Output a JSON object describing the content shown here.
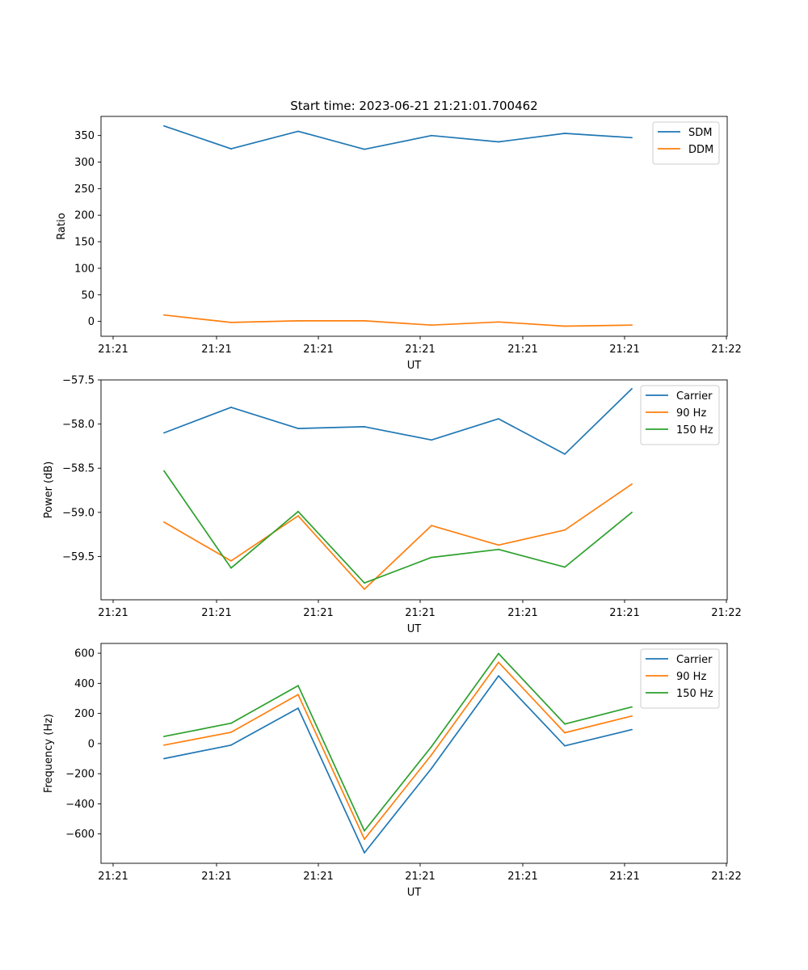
{
  "figure_title": "Start time: 2023-06-21 21:21:01.700462",
  "chart_data": [
    {
      "type": "line",
      "title": "Start time: 2023-06-21 21:21:01.700462",
      "xlabel": "UT",
      "ylabel": "Ratio",
      "x_tick_labels": [
        "21:21",
        "21:21",
        "21:21",
        "21:21",
        "21:21",
        "21:21",
        "21:22"
      ],
      "y_ticks": [
        0,
        50,
        100,
        150,
        200,
        250,
        300,
        350
      ],
      "ylim": [
        -28,
        386
      ],
      "legend_position": "top-right",
      "grid": false,
      "series": [
        {
          "name": "SDM",
          "color": "#1f77b4",
          "values": [
            368,
            325,
            358,
            324,
            350,
            338,
            354,
            346
          ]
        },
        {
          "name": "DDM",
          "color": "#ff7f0e",
          "values": [
            12,
            -2,
            1,
            1,
            -7,
            -1,
            -9,
            -7
          ]
        }
      ]
    },
    {
      "type": "line",
      "title": "",
      "xlabel": "UT",
      "ylabel": "Power (dB)",
      "x_tick_labels": [
        "21:21",
        "21:21",
        "21:21",
        "21:21",
        "21:21",
        "21:21",
        "21:22"
      ],
      "y_ticks": [
        -59.5,
        -59.0,
        -58.5,
        -58.0,
        -57.5
      ],
      "y_tick_labels": [
        "−59.5",
        "−59.0",
        "−58.5",
        "−58.0",
        "−57.5"
      ],
      "ylim": [
        -59.99,
        -57.5
      ],
      "legend_position": "top-right",
      "grid": false,
      "series": [
        {
          "name": "Carrier",
          "color": "#1f77b4",
          "values": [
            -58.1,
            -57.81,
            -58.05,
            -58.03,
            -58.18,
            -57.94,
            -58.34,
            -57.6
          ]
        },
        {
          "name": "90 Hz",
          "color": "#ff7f0e",
          "values": [
            -59.11,
            -59.55,
            -59.04,
            -59.87,
            -59.15,
            -59.37,
            -59.2,
            -58.68
          ]
        },
        {
          "name": "150 Hz",
          "color": "#2ca02c",
          "values": [
            -58.53,
            -59.63,
            -58.99,
            -59.8,
            -59.51,
            -59.42,
            -59.62,
            -59.0
          ]
        }
      ]
    },
    {
      "type": "line",
      "title": "",
      "xlabel": "UT",
      "ylabel": "Frequency (Hz)",
      "x_tick_labels": [
        "21:21",
        "21:21",
        "21:21",
        "21:21",
        "21:21",
        "21:21",
        "21:22"
      ],
      "y_ticks": [
        -600,
        -400,
        -200,
        0,
        200,
        400,
        600
      ],
      "y_tick_labels": [
        "−600",
        "−400",
        "−200",
        "0",
        "200",
        "400",
        "600"
      ],
      "ylim": [
        -795,
        665
      ],
      "legend_position": "top-right",
      "grid": false,
      "series": [
        {
          "name": "Carrier",
          "color": "#1f77b4",
          "values": [
            -100,
            -10,
            235,
            -725,
            -165,
            450,
            -15,
            93
          ]
        },
        {
          "name": "90 Hz",
          "color": "#ff7f0e",
          "values": [
            -10,
            75,
            325,
            -635,
            -75,
            540,
            72,
            183
          ]
        },
        {
          "name": "150 Hz",
          "color": "#2ca02c",
          "values": [
            47,
            135,
            385,
            -580,
            -20,
            598,
            130,
            243
          ]
        }
      ]
    }
  ]
}
